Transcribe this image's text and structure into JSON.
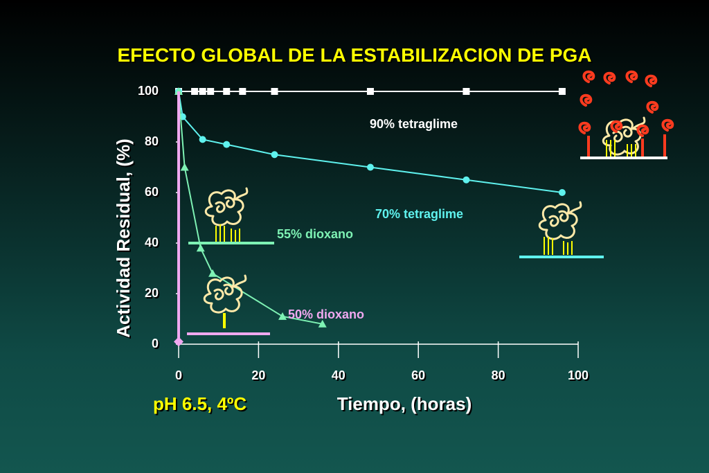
{
  "title": "EFECTO GLOBAL DE LA ESTABILIZACION DE PGA",
  "condition": "pH 6.5, 4ºC",
  "colors": {
    "title": "#ffff00",
    "axis": "#ffffff",
    "tetraglime90": "#ffffff",
    "tetraglime70": "#5ff2ee",
    "dioxano55": "#7ef2b4",
    "dioxano50": "#f0a8f0",
    "protein_chain": "#ffe9a8",
    "crosslink": "#ff3b1f",
    "sidechain": "#ffff00"
  },
  "icons": [
    "protein-crosslinked-icon",
    "protein-icon"
  ],
  "chart_data": {
    "type": "line",
    "title": "EFECTO GLOBAL DE LA ESTABILIZACION DE PGA",
    "xlabel": "Tiempo, (horas)",
    "ylabel": "Actividad Residual, (%)",
    "xlim": [
      0,
      100
    ],
    "ylim": [
      0,
      100
    ],
    "xticks": [
      "0",
      "20",
      "40",
      "60",
      "80",
      "100"
    ],
    "yticks": [
      "0",
      "20",
      "40",
      "60",
      "80",
      "100"
    ],
    "grid": false,
    "series": [
      {
        "name": "90% tetraglime",
        "marker": "square",
        "x": [
          0,
          4,
          6,
          8,
          12,
          16,
          24,
          48,
          72,
          96
        ],
        "y": [
          100,
          100,
          100,
          100,
          100,
          100,
          100,
          100,
          100,
          100
        ]
      },
      {
        "name": "70% tetraglime",
        "marker": "circle",
        "x": [
          0,
          1,
          6,
          12,
          24,
          48,
          72,
          96
        ],
        "y": [
          100,
          90,
          81,
          79,
          75,
          70,
          65,
          60
        ]
      },
      {
        "name": "55% dioxano",
        "marker": "triangle",
        "x": [
          0,
          1.5,
          5.5,
          8.5,
          26,
          36
        ],
        "y": [
          100,
          70,
          38,
          28,
          11,
          8
        ]
      },
      {
        "name": "50% dioxano",
        "marker": "diamond",
        "x": [
          0,
          0,
          0
        ],
        "y": [
          100,
          50,
          1
        ]
      }
    ]
  }
}
